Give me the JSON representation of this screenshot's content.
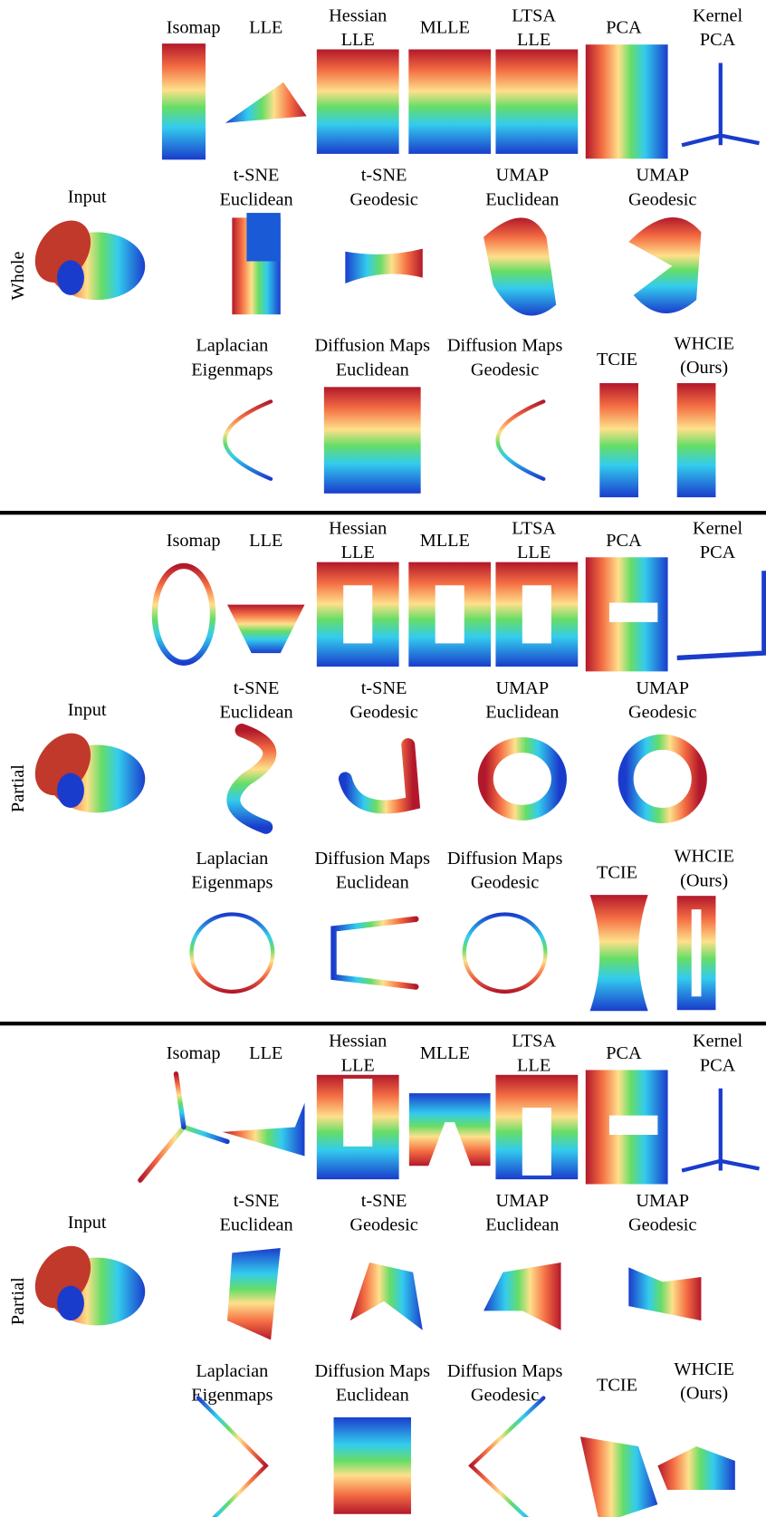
{
  "panels": [
    {
      "row_label": "Whole",
      "input_label": "Input",
      "methods": [
        [
          "Isomap"
        ],
        [
          "LLE"
        ],
        [
          "Hessian",
          "LLE"
        ],
        [
          "MLLE"
        ],
        [
          "LTSA",
          "LLE"
        ],
        [
          "PCA"
        ],
        [
          "Kernel",
          "PCA"
        ],
        [
          "t-SNE",
          "Euclidean"
        ],
        [
          "t-SNE",
          "Geodesic"
        ],
        [
          "UMAP",
          "Euclidean"
        ],
        [
          "UMAP",
          "Geodesic"
        ],
        [
          "Laplacian",
          "Eigenmaps"
        ],
        [
          "Diffusion Maps",
          "Euclidean"
        ],
        [
          "Diffusion Maps",
          "Geodesic"
        ],
        [
          "TCIE"
        ],
        [
          "WHCIE",
          "(Ours)"
        ]
      ]
    },
    {
      "row_label": "Partial",
      "input_label": "Input",
      "methods": [
        [
          "Isomap"
        ],
        [
          "LLE"
        ],
        [
          "Hessian",
          "LLE"
        ],
        [
          "MLLE"
        ],
        [
          "LTSA",
          "LLE"
        ],
        [
          "PCA"
        ],
        [
          "Kernel",
          "PCA"
        ],
        [
          "t-SNE",
          "Euclidean"
        ],
        [
          "t-SNE",
          "Geodesic"
        ],
        [
          "UMAP",
          "Euclidean"
        ],
        [
          "UMAP",
          "Geodesic"
        ],
        [
          "Laplacian",
          "Eigenmaps"
        ],
        [
          "Diffusion Maps",
          "Euclidean"
        ],
        [
          "Diffusion Maps",
          "Geodesic"
        ],
        [
          "TCIE"
        ],
        [
          "WHCIE",
          "(Ours)"
        ]
      ]
    },
    {
      "row_label": "Partial",
      "input_label": "Input",
      "methods": [
        [
          "Isomap"
        ],
        [
          "LLE"
        ],
        [
          "Hessian",
          "LLE"
        ],
        [
          "MLLE"
        ],
        [
          "LTSA",
          "LLE"
        ],
        [
          "PCA"
        ],
        [
          "Kernel",
          "PCA"
        ],
        [
          "t-SNE",
          "Euclidean"
        ],
        [
          "t-SNE",
          "Geodesic"
        ],
        [
          "UMAP",
          "Euclidean"
        ],
        [
          "UMAP",
          "Geodesic"
        ],
        [
          "Laplacian",
          "Eigenmaps"
        ],
        [
          "Diffusion Maps",
          "Euclidean"
        ],
        [
          "Diffusion Maps",
          "Geodesic"
        ],
        [
          "TCIE"
        ],
        [
          "WHCIE",
          "(Ours)"
        ]
      ]
    }
  ]
}
